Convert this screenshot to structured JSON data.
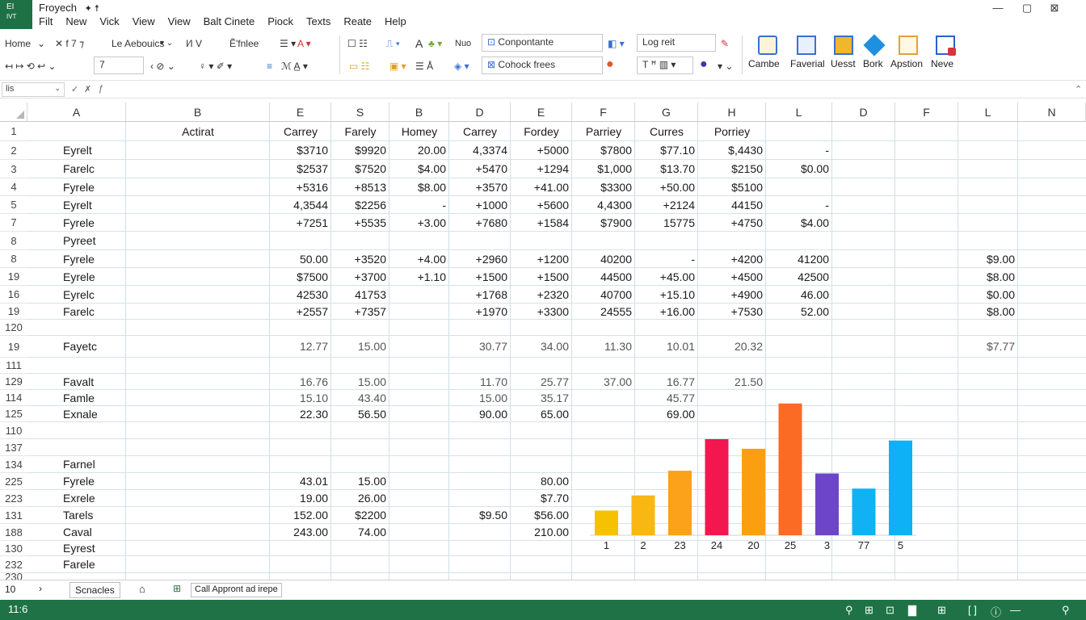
{
  "app": {
    "logo_line1": "EI",
    "logo_line2": "IVT",
    "title": "Froyech",
    "title_glyphs": "✦ ☨",
    "win_minimize": "—",
    "win_restore": "▢",
    "win_close": "⊠"
  },
  "menu": [
    "Filt",
    "New",
    "Vick",
    "View",
    "View",
    "Balt Cinete",
    "Piock",
    "Texts",
    "Reate",
    "Help"
  ],
  "ribbon": {
    "home_label": "Home",
    "font_name": "Le Aebouics",
    "cut_glyphs": "✕  f  7  ⁊",
    "font_size_glyphs": "I⁄I  V",
    "insert_label": "Ẽ'fnlee",
    "style_combo": "Conpontante",
    "style_combo2": "Cohock frees",
    "logret_combo": "Log reit",
    "no_label": "Nuo",
    "zoom_combo": "7",
    "big_buttons": [
      "Cambe",
      "Faverial",
      "Uesst",
      "Bork",
      "Apstion",
      "Neve"
    ],
    "big_button_colors": [
      "#f5a623",
      "#3b6fd1",
      "#e8a317",
      "#1f8fe0",
      "#e2a13a",
      "#d9343c"
    ]
  },
  "formula": {
    "namebox": "lis",
    "fx": "fx"
  },
  "columns": [
    "A",
    "B",
    "E",
    "S",
    "B",
    "D",
    "E",
    "F",
    "G",
    "H",
    "L",
    "D",
    "F",
    "L",
    "N"
  ],
  "row_numbers": [
    "1",
    "2",
    "3",
    "4",
    "5",
    "7",
    "8",
    "8",
    "19",
    "16",
    "19",
    "120",
    "19",
    "111",
    "129",
    "114",
    "125",
    "110",
    "137",
    "134",
    "225",
    "223",
    "131",
    "188",
    "130",
    "232",
    "230"
  ],
  "header_row": [
    "Actirat",
    "Carrey",
    "Farely",
    "Homey",
    "Carrey",
    "Fordey",
    "Parriey",
    "Curres",
    "Porriey"
  ],
  "rows": [
    {
      "a": "Eyrelt",
      "v": [
        "$3710",
        "$9920",
        "20.00",
        "4,3374",
        "+5000",
        "$7800",
        "$77.10",
        "$,4430",
        "-",
        "",
        "",
        ""
      ]
    },
    {
      "a": "Farelc",
      "v": [
        "$2537",
        "$7520",
        "$4.00",
        "+5470",
        "+1294",
        "$1,000",
        "$13.70",
        "$2150",
        "$0.00",
        "",
        "",
        ""
      ]
    },
    {
      "a": "Fyrele",
      "v": [
        "+5316",
        "+8513",
        "$8.00",
        "+3570",
        "+41.00",
        "$3300",
        "+50.00",
        "$5100",
        "",
        "",
        "",
        ""
      ]
    },
    {
      "a": "Eyrelt",
      "v": [
        "4,3544",
        "$2256",
        "-",
        "+1000",
        "+5600",
        "4,4300",
        "+2124",
        "44150",
        "-",
        "",
        "",
        ""
      ]
    },
    {
      "a": "Fyrele",
      "v": [
        "+7251",
        "+5535",
        "+3.00",
        "+7680",
        "+1584",
        "$7900",
        "15775",
        "+4750",
        "$4.00",
        "",
        "",
        ""
      ]
    },
    {
      "a": "Pyreet",
      "v": [
        "",
        "",
        "",
        "",
        "",
        "",
        "",
        "",
        "",
        "",
        "",
        ""
      ]
    },
    {
      "a": "Fyrele",
      "v": [
        "50.00",
        "+3520",
        "+4.00",
        "+2960",
        "+1200",
        "40200",
        "-",
        "+4200",
        "41200",
        "",
        "",
        "$9.00"
      ]
    },
    {
      "a": "Eyrele",
      "v": [
        "$7500",
        "+3700",
        "+1.10",
        "+1500",
        "+1500",
        "44500",
        "+45.00",
        "+4500",
        "42500",
        "",
        "",
        "$8.00"
      ]
    },
    {
      "a": "Eyrelc",
      "v": [
        "42530",
        "41753",
        "",
        "+1768",
        "+2320",
        "40700",
        "+15.10",
        "+4900",
        "46.00",
        "",
        "",
        "$0.00"
      ]
    },
    {
      "a": "Farelc",
      "v": [
        "+2557",
        "+7357",
        "",
        "+1970",
        "+3300",
        "24555",
        "+16.00",
        "+7530",
        "52.00",
        "",
        "",
        "$8.00"
      ]
    },
    {
      "a": "",
      "v": [
        "",
        "",
        "",
        "",
        "",
        "",
        "",
        "",
        "",
        "",
        "",
        ""
      ]
    },
    {
      "a": "Fayetc",
      "v": [
        "12.77",
        "15.00",
        "",
        "30.77",
        "34.00",
        "11.30",
        "10.01",
        "20.32",
        "",
        "",
        "",
        "$7.77"
      ]
    },
    {
      "a": "",
      "v": [
        "",
        "",
        "",
        "",
        "",
        "",
        "",
        "",
        "",
        "",
        "",
        ""
      ]
    },
    {
      "a": "Favalt",
      "v": [
        "16.76",
        "15.00",
        "",
        "11.70",
        "25.77",
        "37.00",
        "16.77",
        "21.50",
        "",
        "",
        "",
        ""
      ]
    },
    {
      "a": "Famle",
      "v": [
        "15.10",
        "43.40",
        "",
        "15.00",
        "35.17",
        "",
        "45.77",
        "",
        "",
        "",
        "",
        ""
      ]
    },
    {
      "a": "Exnale",
      "v": [
        "22.30",
        "56.50",
        "",
        "90.00",
        "65.00",
        "",
        "69.00",
        "",
        "",
        "",
        "",
        ""
      ]
    },
    {
      "a": "",
      "v": [
        "",
        "",
        "",
        "",
        "",
        "",
        "",
        "",
        "",
        "",
        "",
        ""
      ]
    },
    {
      "a": "",
      "v": [
        "",
        "",
        "",
        "",
        "",
        "",
        "",
        "",
        "",
        "",
        "",
        ""
      ]
    },
    {
      "a": "Farnel",
      "v": [
        "",
        "",
        "",
        "",
        "",
        "",
        "",
        "",
        "",
        "",
        "",
        ""
      ]
    },
    {
      "a": "Fyrele",
      "v": [
        "43.01",
        "15.00",
        "",
        "",
        "80.00",
        "",
        "",
        "",
        "",
        "",
        "",
        ""
      ]
    },
    {
      "a": "Exrele",
      "v": [
        "19.00",
        "26.00",
        "",
        "",
        "$7.70",
        "",
        "",
        "",
        "",
        "",
        "",
        ""
      ]
    },
    {
      "a": "Tarels",
      "v": [
        "152.00",
        "$2200",
        "",
        "$9.50",
        "$56.00",
        "",
        "",
        "",
        "",
        "",
        "",
        ""
      ]
    },
    {
      "a": "Caval",
      "v": [
        "243.00",
        "74.00",
        "",
        "",
        "210.00",
        "",
        "",
        "",
        "",
        "",
        "",
        ""
      ]
    },
    {
      "a": "Eyrest",
      "v": [
        "",
        "",
        "",
        "",
        "",
        "",
        "",
        "",
        "",
        "",
        "",
        ""
      ]
    },
    {
      "a": "Farele",
      "v": [
        "",
        "",
        "",
        "",
        "",
        "",
        "",
        "",
        "",
        "",
        "",
        ""
      ]
    },
    {
      "a": "",
      "v": [
        "",
        "",
        "",
        "",
        "",
        "",
        "",
        "",
        "",
        "",
        "",
        ""
      ]
    }
  ],
  "chart_data": {
    "type": "bar",
    "categories": [
      "1",
      "2",
      "23",
      "24",
      "20",
      "25",
      "3",
      "77",
      "5"
    ],
    "values": [
      18,
      29,
      47,
      70,
      63,
      96,
      45,
      34,
      69
    ],
    "colors": [
      "#f6c200",
      "#f8b712",
      "#fba11a",
      "#f2174e",
      "#fb9f10",
      "#fb6b24",
      "#6c46c7",
      "#11b2f5",
      "#0eb1f5"
    ],
    "ylim": [
      0,
      100
    ],
    "grid": false,
    "legend": "none",
    "title": "",
    "xlabel": "",
    "ylabel": ""
  },
  "sheets": {
    "nav_count": "10",
    "nav_arrow": "›",
    "active_tab": "Scnacles",
    "home_glyph": "⌂",
    "add_glyph": "⊞",
    "status_msg": "Call Appront ad irepe"
  },
  "status": {
    "left": "11:6",
    "icons": [
      "search-icon",
      "grid-icon",
      "camera-icon",
      "folder-icon",
      "table-icon",
      "layout-icon",
      "zoom-icon"
    ],
    "glyphs": [
      "⚲",
      "⊞",
      "⊡",
      "▇",
      "⊞",
      "[ ]",
      "ⓘ",
      "—",
      "⚲"
    ]
  }
}
